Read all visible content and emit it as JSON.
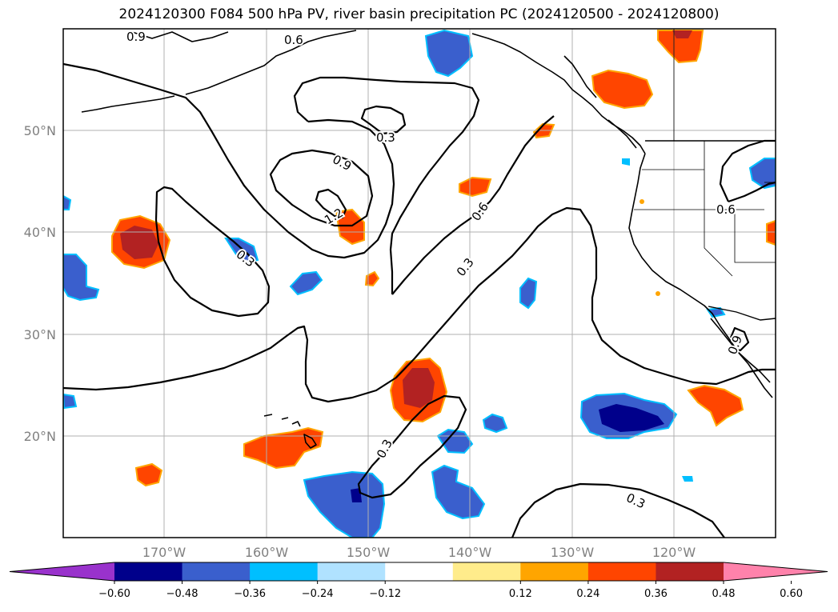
{
  "title": "2024120300 F084 500 hPa PV, river basin precipitation PC (2024120500 - 2024120800)",
  "map": {
    "lat_labels": [
      "50°N",
      "40°N",
      "30°N",
      "20°N"
    ],
    "lon_labels": [
      "170°W",
      "160°W",
      "150°W",
      "140°W",
      "130°W",
      "120°W"
    ],
    "gridlines": true,
    "contour_labels": [
      "0.9",
      "0.6",
      "0.3",
      "0.9",
      "1.2",
      "0.6",
      "0.3",
      "0.3",
      "0.6",
      "0.3",
      "0.3",
      "0.9"
    ],
    "colors": {
      "pv_contour": "#000000",
      "coastline": "#000000",
      "gridline": "#b0b0b0"
    }
  },
  "colorbar": {
    "tick_labels": [
      "−0.60",
      "−0.48",
      "−0.36",
      "−0.24",
      "−0.12",
      "0.12",
      "0.24",
      "0.36",
      "0.48",
      "0.60"
    ],
    "colors": [
      "#9932cc",
      "#00008b",
      "#3a5fcd",
      "#00bfff",
      "#b0e2ff",
      "#ffffff",
      "#ffec8b",
      "#ffa500",
      "#ff4500",
      "#b22222",
      "#ff82ab"
    ]
  }
}
